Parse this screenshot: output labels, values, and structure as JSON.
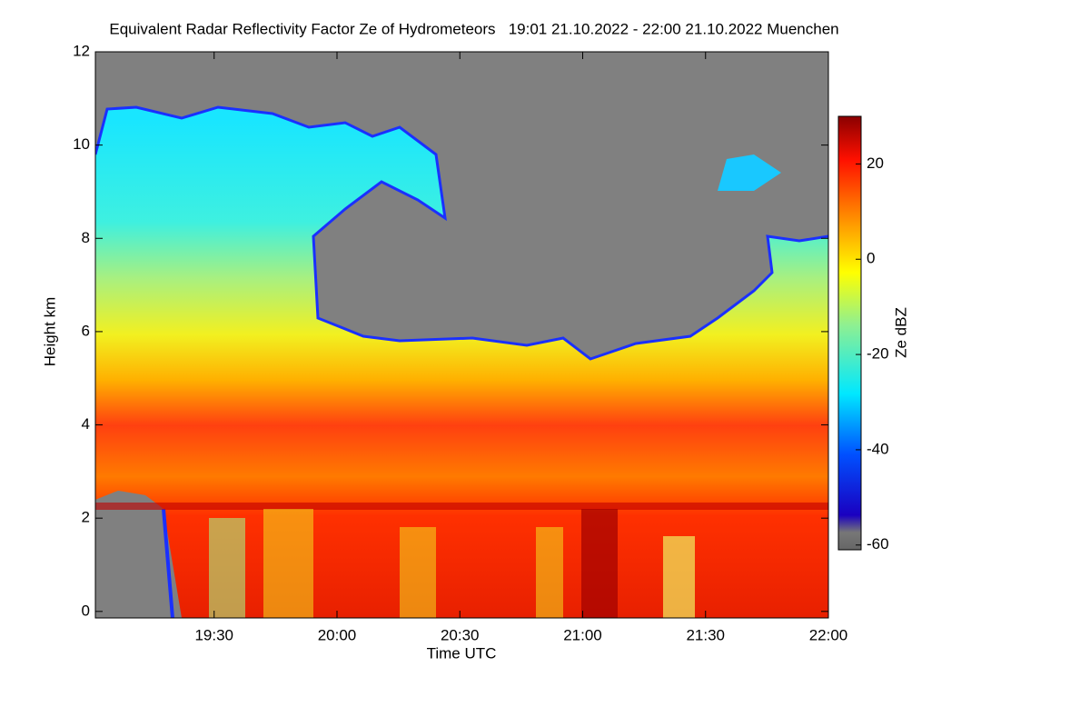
{
  "chart_data": {
    "type": "heatmap",
    "title": "Equivalent Radar Reflectivity Factor Ze of Hydrometeors   19:01 21.10.2022 - 22:00 21.10.2022 Muenchen",
    "x_label": "Time UTC",
    "y_label": "Height km",
    "colorbar_label": "Ze dBZ",
    "xlim": [
      "19:01",
      "22:00"
    ],
    "xticks": [
      "19:30",
      "20:00",
      "20:30",
      "21:00",
      "21:30",
      "22:00"
    ],
    "ylim": [
      -0.14,
      12
    ],
    "yticks": [
      0,
      2,
      4,
      6,
      8,
      10,
      12
    ],
    "clim": [
      -61,
      30
    ],
    "cticks": [
      20,
      0,
      -20,
      -40,
      -60
    ]
  }
}
